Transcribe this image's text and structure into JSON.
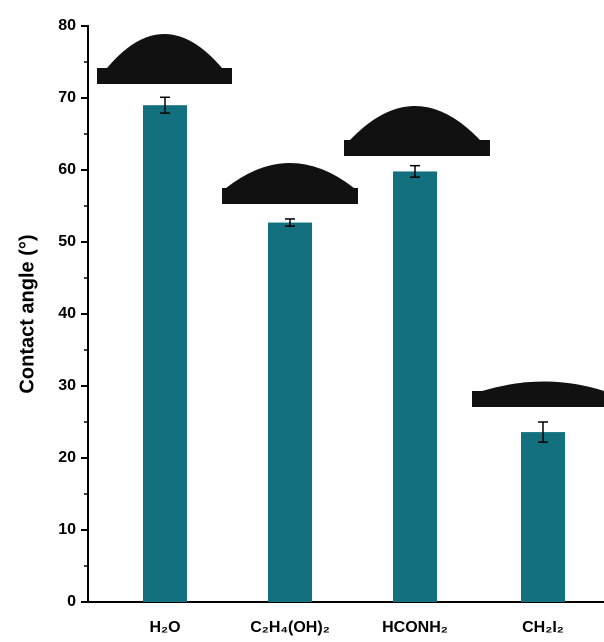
{
  "chart_data": {
    "type": "bar",
    "y_label": "Contact angle (°)",
    "categories": [
      "H₂O",
      "C₂H₄(OH)₂",
      "HCONH₂",
      "CH₂I₂"
    ],
    "values": [
      69,
      52.7,
      59.8,
      23.6
    ],
    "error": [
      1.1,
      0.5,
      0.8,
      1.4
    ],
    "color": "#13707f",
    "ylim": [
      0,
      80
    ],
    "yticks": [
      0,
      10,
      20,
      30,
      40,
      50,
      60,
      70,
      80
    ],
    "grid": false
  }
}
